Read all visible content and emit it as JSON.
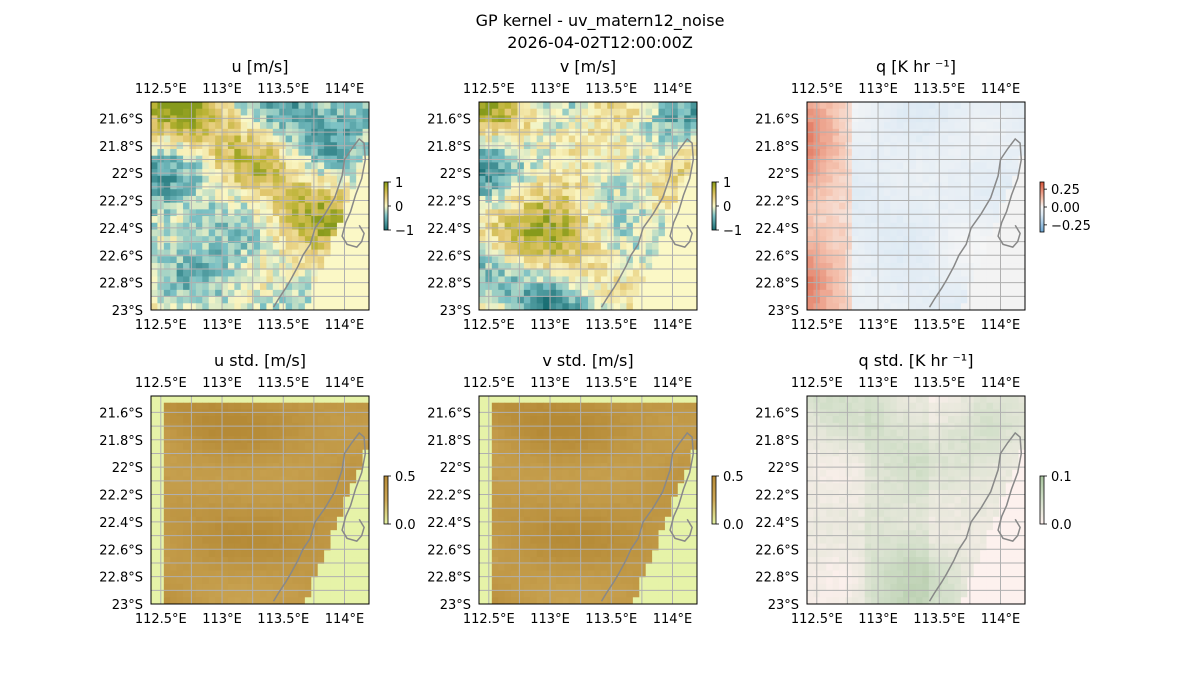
{
  "figure": {
    "title_line1": "GP kernel - uv_matern12_noise",
    "title_line2": "2026-04-02T12:00:00Z"
  },
  "colors": {
    "land_beige": "#fbf8c6",
    "ocean_blue": "#a7bde0",
    "land_green": "#e6f3a8",
    "std_brown": "#b8903d",
    "grid_gray": "#b0b0b0",
    "coast_gray": "#888888",
    "q_red": "#e0744f",
    "q_blue": "#cfe0ef",
    "q_std_green": "#c6d6bd",
    "q_std_pink": "#fdf1ee"
  },
  "chart_data": [
    {
      "type": "heatmap",
      "title": "u [m/s]",
      "x_ticks": [
        "112.5°E",
        "113°E",
        "113.5°E",
        "114°E"
      ],
      "y_ticks": [
        "21.6°S",
        "21.8°S",
        "22°S",
        "22.2°S",
        "22.4°S",
        "22.6°S",
        "22.8°S",
        "23°S"
      ],
      "colorbar_ticks": [
        "1",
        "0",
        "−1"
      ],
      "colorbar_range": [
        -1,
        1
      ],
      "colormap": "brown-yellow-teal diverging",
      "lon_range": [
        112.42,
        114.2
      ],
      "lat_range": [
        -23.0,
        -21.48
      ]
    },
    {
      "type": "heatmap",
      "title": "v [m/s]",
      "x_ticks": [
        "112.5°E",
        "113°E",
        "113.5°E",
        "114°E"
      ],
      "y_ticks": [
        "21.6°S",
        "21.8°S",
        "22°S",
        "22.2°S",
        "22.4°S",
        "22.6°S",
        "22.8°S",
        "23°S"
      ],
      "colorbar_ticks": [
        "1",
        "0",
        "−1"
      ],
      "colorbar_range": [
        -1,
        1
      ],
      "colormap": "brown-yellow-teal diverging",
      "lon_range": [
        112.42,
        114.2
      ],
      "lat_range": [
        -23.0,
        -21.48
      ]
    },
    {
      "type": "heatmap",
      "title": "q [K hr ⁻¹]",
      "x_ticks": [
        "112.5°E",
        "113°E",
        "113.5°E",
        "114°E"
      ],
      "y_ticks": [
        "21.6°S",
        "21.8°S",
        "22°S",
        "22.2°S",
        "22.4°S",
        "22.6°S",
        "22.8°S",
        "23°S"
      ],
      "colorbar_ticks": [
        "0.25",
        "0.00",
        "−0.25"
      ],
      "colorbar_range": [
        -0.35,
        0.35
      ],
      "colormap": "red-white-blue diverging",
      "lon_range": [
        112.42,
        114.2
      ],
      "lat_range": [
        -23.0,
        -21.48
      ]
    },
    {
      "type": "heatmap",
      "title": "u std. [m/s]",
      "x_ticks": [
        "112.5°E",
        "113°E",
        "113.5°E",
        "114°E"
      ],
      "y_ticks": [
        "21.6°S",
        "21.8°S",
        "22°S",
        "22.2°S",
        "22.4°S",
        "22.6°S",
        "22.8°S",
        "23°S"
      ],
      "colorbar_ticks": [
        "0.5",
        "0.0"
      ],
      "colorbar_range": [
        0,
        0.5
      ],
      "colormap": "brown-green sequential",
      "lon_range": [
        112.42,
        114.2
      ],
      "lat_range": [
        -23.0,
        -21.48
      ]
    },
    {
      "type": "heatmap",
      "title": "v std. [m/s]",
      "x_ticks": [
        "112.5°E",
        "113°E",
        "113.5°E",
        "114°E"
      ],
      "y_ticks": [
        "21.6°S",
        "21.8°S",
        "22°S",
        "22.2°S",
        "22.4°S",
        "22.6°S",
        "22.8°S",
        "23°S"
      ],
      "colorbar_ticks": [
        "0.5",
        "0.0"
      ],
      "colorbar_range": [
        0,
        0.5
      ],
      "colormap": "brown-green sequential",
      "lon_range": [
        112.42,
        114.2
      ],
      "lat_range": [
        -23.0,
        -21.48
      ]
    },
    {
      "type": "heatmap",
      "title": "q std. [K hr ⁻¹]",
      "x_ticks": [
        "112.5°E",
        "113°E",
        "113.5°E",
        "114°E"
      ],
      "y_ticks": [
        "21.6°S",
        "21.8°S",
        "22°S",
        "22.2°S",
        "22.4°S",
        "22.6°S",
        "22.8°S",
        "23°S"
      ],
      "colorbar_ticks": [
        "0.1",
        "0.0"
      ],
      "colorbar_range": [
        0,
        0.1
      ],
      "colormap": "pink-green sequential",
      "lon_range": [
        112.42,
        114.2
      ],
      "lat_range": [
        -23.0,
        -21.48
      ]
    }
  ]
}
